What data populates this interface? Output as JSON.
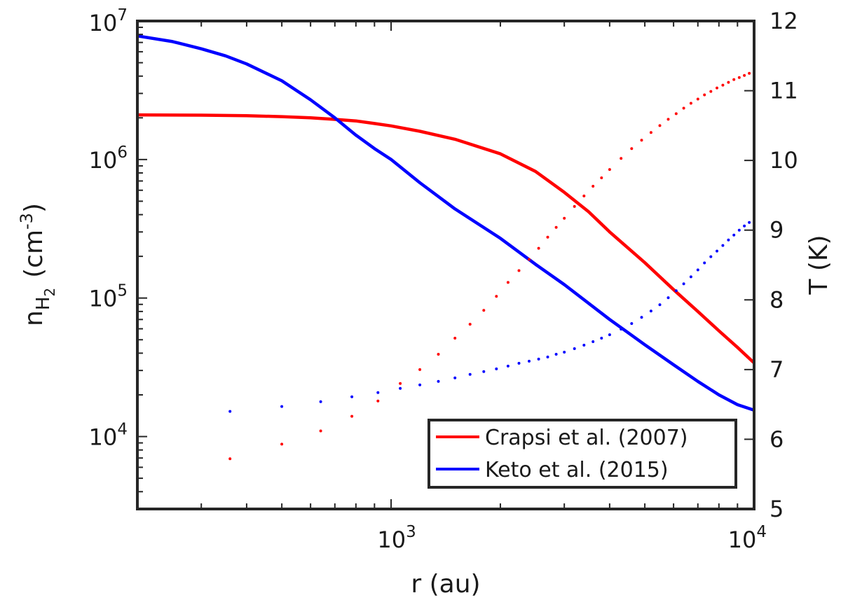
{
  "chart_data": {
    "type": "line",
    "title": "",
    "xlabel": "r (au)",
    "ylabel_left": {
      "base": "n",
      "sub": "H",
      "subsub": "2",
      "units": "(cm",
      "units_exp": "-3",
      "units_close": ")"
    },
    "ylabel_right": "T (K)",
    "xscale": "log",
    "yscale_left": "log",
    "xlim": [
      200,
      10000
    ],
    "ylim_left": [
      3000,
      10000000
    ],
    "ylim_right": [
      5,
      12
    ],
    "x_ticks": [
      {
        "value": 1000,
        "base": "10",
        "exp": "3"
      },
      {
        "value": 10000,
        "base": "10",
        "exp": "4"
      }
    ],
    "y_left_ticks": [
      {
        "value": 10000,
        "base": "10",
        "exp": "4"
      },
      {
        "value": 100000,
        "base": "10",
        "exp": "5"
      },
      {
        "value": 1000000,
        "base": "10",
        "exp": "6"
      },
      {
        "value": 10000000,
        "base": "10",
        "exp": "7"
      }
    ],
    "y_right_ticks": [
      "5",
      "6",
      "7",
      "8",
      "9",
      "10",
      "11",
      "12"
    ],
    "legend": {
      "position": "bottom-right",
      "entries": [
        "Crapsi et al. (2007)",
        "Keto et al. (2015)"
      ]
    },
    "series": [
      {
        "name": "Crapsi et al. (2007)",
        "kind": "density",
        "axis": "left",
        "color": "#ff0000",
        "x": [
          200,
          300,
          400,
          500,
          600,
          700,
          800,
          900,
          1000,
          1200,
          1500,
          2000,
          2500,
          3000,
          3500,
          4000,
          5000,
          6000,
          7000,
          8000,
          9000,
          10000
        ],
        "y": [
          2100000,
          2090000,
          2070000,
          2040000,
          2000000,
          1950000,
          1900000,
          1820000,
          1750000,
          1600000,
          1400000,
          1100000,
          820000,
          580000,
          420000,
          300000,
          180000,
          115000,
          80000,
          58000,
          44000,
          34000
        ]
      },
      {
        "name": "Keto et al. (2015)",
        "kind": "density",
        "axis": "left",
        "color": "#0000ff",
        "x": [
          200,
          250,
          300,
          350,
          400,
          500,
          600,
          700,
          800,
          900,
          1000,
          1200,
          1500,
          2000,
          2500,
          3000,
          4000,
          5000,
          6000,
          7000,
          8000,
          9000,
          10000
        ],
        "y": [
          7800000,
          7100000,
          6300000,
          5600000,
          4900000,
          3700000,
          2700000,
          2000000,
          1500000,
          1200000,
          1000000,
          680000,
          440000,
          270000,
          175000,
          125000,
          70000,
          46000,
          33000,
          25000,
          20000,
          17000,
          15500
        ]
      },
      {
        "name": "Crapsi et al. (2007)",
        "kind": "temperature",
        "axis": "right",
        "color": "#ff0000",
        "x": [
          360,
          500,
          640,
          780,
          920,
          1060,
          1200,
          1350,
          1500,
          1650,
          1800,
          1950,
          2100,
          2250,
          2400,
          2550,
          2700,
          2850,
          3000,
          3200,
          3400,
          3600,
          3800,
          4000,
          4300,
          4600,
          4900,
          5200,
          5500,
          5800,
          6100,
          6400,
          6700,
          7000,
          7300,
          7600,
          7900,
          8200,
          8500,
          8800,
          9100,
          9400,
          9700,
          10000
        ],
        "y": [
          5.72,
          5.93,
          6.12,
          6.33,
          6.55,
          6.8,
          7.0,
          7.22,
          7.45,
          7.65,
          7.85,
          8.05,
          8.25,
          8.42,
          8.58,
          8.74,
          8.9,
          9.04,
          9.17,
          9.34,
          9.49,
          9.63,
          9.75,
          9.87,
          10.03,
          10.17,
          10.29,
          10.4,
          10.5,
          10.59,
          10.67,
          10.75,
          10.82,
          10.88,
          10.94,
          10.99,
          11.04,
          11.08,
          11.12,
          11.16,
          11.19,
          11.22,
          11.25,
          11.27
        ]
      },
      {
        "name": "Keto et al. (2015)",
        "kind": "temperature",
        "axis": "right",
        "color": "#0000ff",
        "x": [
          360,
          500,
          640,
          780,
          920,
          1060,
          1200,
          1350,
          1500,
          1650,
          1800,
          1950,
          2100,
          2250,
          2400,
          2550,
          2700,
          2850,
          3000,
          3200,
          3400,
          3600,
          3800,
          4000,
          4300,
          4600,
          4900,
          5200,
          5500,
          5800,
          6100,
          6400,
          6700,
          7000,
          7300,
          7600,
          7900,
          8200,
          8500,
          8800,
          9100,
          9400,
          9700,
          10000
        ],
        "y": [
          6.4,
          6.47,
          6.54,
          6.61,
          6.67,
          6.73,
          6.78,
          6.83,
          6.88,
          6.93,
          6.97,
          7.01,
          7.05,
          7.09,
          7.12,
          7.15,
          7.18,
          7.22,
          7.25,
          7.3,
          7.35,
          7.4,
          7.45,
          7.5,
          7.58,
          7.66,
          7.75,
          7.84,
          7.93,
          8.03,
          8.13,
          8.23,
          8.33,
          8.43,
          8.53,
          8.62,
          8.7,
          8.78,
          8.86,
          8.93,
          9.0,
          9.06,
          9.11,
          9.15
        ]
      }
    ]
  }
}
